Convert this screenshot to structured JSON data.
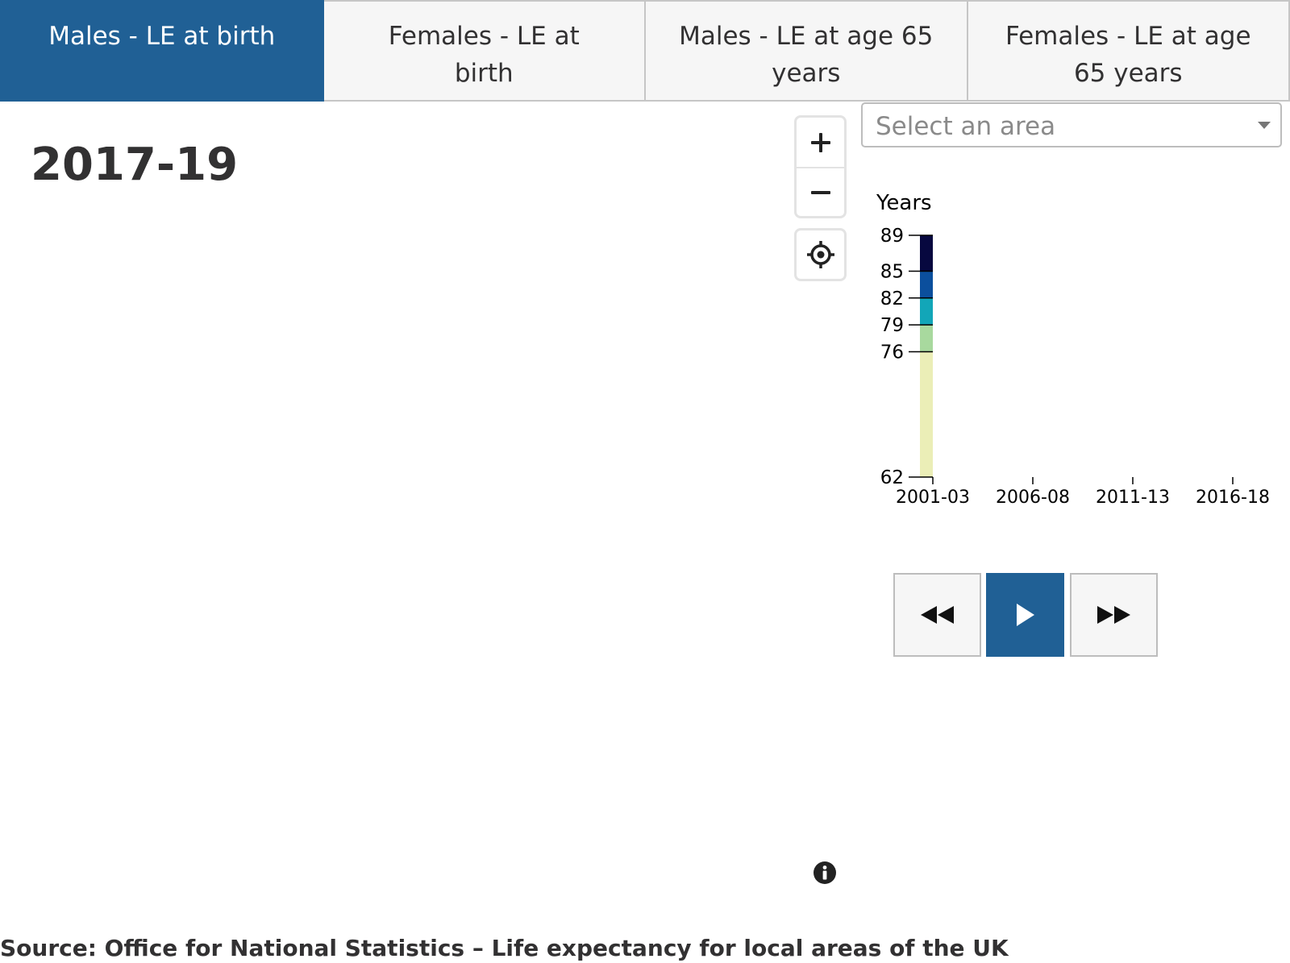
{
  "tabs": [
    {
      "label": "Males - LE at birth",
      "active": true
    },
    {
      "label": "Females - LE at birth",
      "active": false
    },
    {
      "label": "Males - LE at age 65 years",
      "active": false
    },
    {
      "label": "Females - LE at age 65 years",
      "active": false
    }
  ],
  "period_title": "2017-19",
  "area_select": {
    "placeholder": "Select an area"
  },
  "map_controls": {
    "zoom_in_icon": "plus-icon",
    "zoom_out_icon": "minus-icon",
    "locate_icon": "crosshair-icon"
  },
  "colors": {
    "accent": "#206095",
    "legend_bins": [
      "#ebeeb7",
      "#a8d99e",
      "#12a6b8",
      "#0b4f9d",
      "#07083f"
    ]
  },
  "chart_data": {
    "type": "heatmap",
    "title": "Years",
    "legend_breaks": [
      62,
      76,
      79,
      82,
      85,
      89
    ],
    "legend_colors": [
      "#ebeeb7",
      "#a8d99e",
      "#12a6b8",
      "#0b4f9d",
      "#07083f"
    ],
    "x_ticks": [
      "2001-03",
      "2006-08",
      "2011-13",
      "2016-18"
    ],
    "ylim": [
      62,
      89
    ]
  },
  "player": {
    "rewind_icon": "rewind-icon",
    "play_icon": "play-icon",
    "forward_icon": "fast-forward-icon"
  },
  "info_icon": "info-icon",
  "source": "Source: Office for National Statistics – Life expectancy for local areas of the UK"
}
